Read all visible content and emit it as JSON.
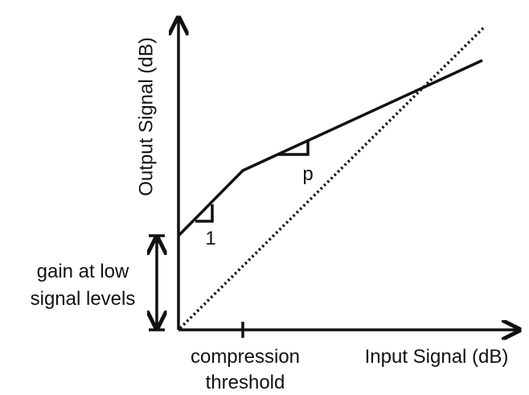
{
  "axes": {
    "y_label": "Output Signal (dB)",
    "x_label": "Input Signal (dB)"
  },
  "annotations": {
    "threshold": [
      "compression",
      "threshold"
    ],
    "gain": [
      "gain at low",
      "signal levels"
    ],
    "slope_low": "1",
    "slope_high": "p"
  }
}
